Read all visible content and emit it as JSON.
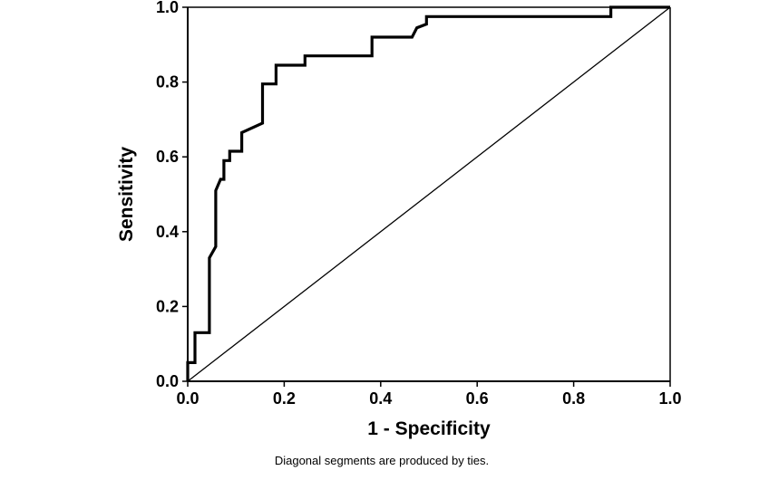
{
  "chart_data": {
    "type": "line",
    "title": "",
    "xlabel": "1 - Specificity",
    "ylabel": "Sensitivity",
    "xlim": [
      0,
      1
    ],
    "ylim": [
      0,
      1
    ],
    "xticks": [
      "0.0",
      "0.2",
      "0.4",
      "0.6",
      "0.8",
      "1.0"
    ],
    "yticks": [
      "0.0",
      "0.2",
      "0.4",
      "0.6",
      "0.8",
      "1.0"
    ],
    "grid": false,
    "legend": "none",
    "series": [
      {
        "x": [
          0.0,
          0.0,
          0.015,
          0.015,
          0.045,
          0.045,
          0.058,
          0.058,
          0.068,
          0.075,
          0.075,
          0.087,
          0.087,
          0.112,
          0.112,
          0.155,
          0.155,
          0.183,
          0.183,
          0.243,
          0.243,
          0.382,
          0.382,
          0.465,
          0.475,
          0.495,
          0.495,
          0.877,
          0.877,
          1.0
        ],
        "y": [
          0.0,
          0.05,
          0.05,
          0.13,
          0.13,
          0.33,
          0.36,
          0.51,
          0.54,
          0.54,
          0.59,
          0.59,
          0.615,
          0.615,
          0.665,
          0.69,
          0.795,
          0.795,
          0.845,
          0.845,
          0.87,
          0.87,
          0.92,
          0.92,
          0.945,
          0.955,
          0.975,
          0.975,
          1.0,
          1.0
        ],
        "color": "#000000"
      },
      {
        "x": [
          0,
          1
        ],
        "y": [
          0,
          1
        ],
        "color": "#000000"
      }
    ],
    "annotations": [
      "Diagonal segments are produced by ties."
    ]
  }
}
